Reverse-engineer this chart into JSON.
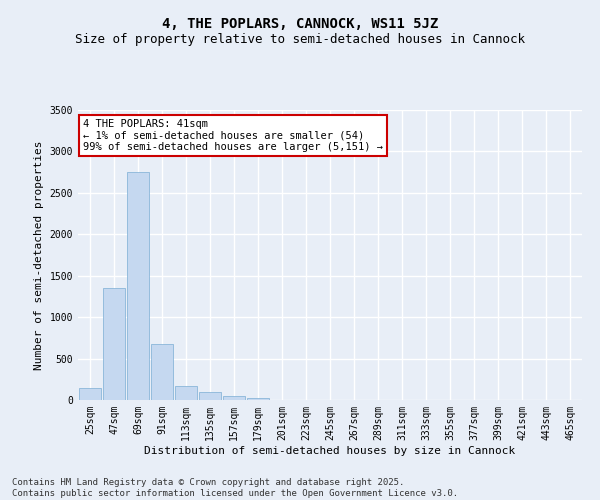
{
  "title": "4, THE POPLARS, CANNOCK, WS11 5JZ",
  "subtitle": "Size of property relative to semi-detached houses in Cannock",
  "xlabel": "Distribution of semi-detached houses by size in Cannock",
  "ylabel": "Number of semi-detached properties",
  "categories": [
    "25sqm",
    "47sqm",
    "69sqm",
    "91sqm",
    "113sqm",
    "135sqm",
    "157sqm",
    "179sqm",
    "201sqm",
    "223sqm",
    "245sqm",
    "267sqm",
    "289sqm",
    "311sqm",
    "333sqm",
    "355sqm",
    "377sqm",
    "399sqm",
    "421sqm",
    "443sqm",
    "465sqm"
  ],
  "values": [
    150,
    1350,
    2750,
    670,
    175,
    100,
    50,
    30,
    0,
    0,
    0,
    0,
    0,
    0,
    0,
    0,
    0,
    0,
    0,
    0,
    0
  ],
  "bar_color": "#c5d8f0",
  "bar_edge_color": "#7badd4",
  "annotation_text": "4 THE POPLARS: 41sqm\n← 1% of semi-detached houses are smaller (54)\n99% of semi-detached houses are larger (5,151) →",
  "annotation_box_color": "#ffffff",
  "annotation_box_edge_color": "#cc0000",
  "ylim": [
    0,
    3500
  ],
  "yticks": [
    0,
    500,
    1000,
    1500,
    2000,
    2500,
    3000,
    3500
  ],
  "background_color": "#e8eef7",
  "plot_background_color": "#e8eef7",
  "grid_color": "#ffffff",
  "footer_line1": "Contains HM Land Registry data © Crown copyright and database right 2025.",
  "footer_line2": "Contains public sector information licensed under the Open Government Licence v3.0.",
  "title_fontsize": 10,
  "subtitle_fontsize": 9,
  "axis_label_fontsize": 8,
  "tick_fontsize": 7,
  "annotation_fontsize": 7.5,
  "footer_fontsize": 6.5
}
